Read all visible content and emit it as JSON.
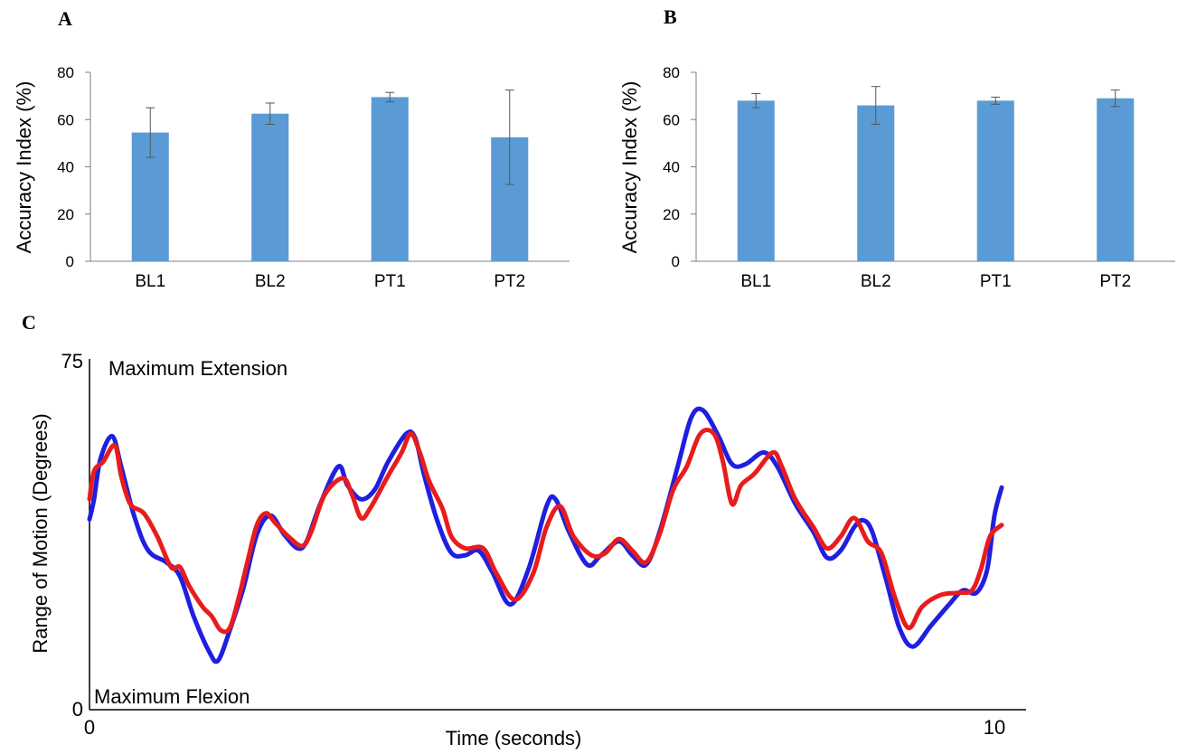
{
  "chart_data": [
    {
      "panel": "A",
      "type": "bar",
      "categories": [
        "BL1",
        "BL2",
        "PT1",
        "PT2"
      ],
      "values": [
        54.5,
        62.5,
        69.5,
        52.5
      ],
      "errors": [
        10.5,
        4.5,
        2.0,
        20.0
      ],
      "ylabel": "Accuracy Index (%)",
      "ylim": [
        0,
        80
      ],
      "yticks": [
        "0",
        "20",
        "40",
        "60",
        "80"
      ],
      "bar_color": "#5b9bd5",
      "grid": false
    },
    {
      "panel": "B",
      "type": "bar",
      "categories": [
        "BL1",
        "BL2",
        "PT1",
        "PT2"
      ],
      "values": [
        68,
        66,
        68,
        69
      ],
      "errors": [
        3.0,
        8.0,
        1.5,
        3.5
      ],
      "ylabel": "Accuracy Index (%)",
      "ylim": [
        0,
        80
      ],
      "yticks": [
        "0",
        "20",
        "40",
        "60",
        "80"
      ],
      "bar_color": "#5b9bd5",
      "grid": false
    },
    {
      "panel": "C",
      "type": "line",
      "xlabel": "Time (seconds)",
      "ylabel": "Range of Motion (Degrees)",
      "xlim": [
        0,
        10
      ],
      "ylim": [
        0,
        75
      ],
      "xticks": [
        "0",
        "10"
      ],
      "yticks": [
        "0",
        "75"
      ],
      "annotations": {
        "top": "Maximum Extension",
        "bottom": "Maximum Flexion"
      },
      "grid": false,
      "series": [
        {
          "color": "#1f1fdf",
          "points": [
            [
              0.0,
              40.7
            ],
            [
              0.05,
              45.0
            ],
            [
              0.12,
              53.5
            ],
            [
              0.25,
              58.5
            ],
            [
              0.35,
              52.0
            ],
            [
              0.5,
              41.0
            ],
            [
              0.65,
              34.0
            ],
            [
              0.85,
              31.5
            ],
            [
              1.0,
              28.5
            ],
            [
              1.15,
              20.0
            ],
            [
              1.32,
              12.5
            ],
            [
              1.42,
              10.5
            ],
            [
              1.55,
              17.0
            ],
            [
              1.7,
              26.0
            ],
            [
              1.85,
              37.5
            ],
            [
              2.0,
              41.5
            ],
            [
              2.15,
              37.5
            ],
            [
              2.3,
              34.5
            ],
            [
              2.4,
              36.0
            ],
            [
              2.55,
              44.0
            ],
            [
              2.75,
              52.0
            ],
            [
              2.85,
              48.0
            ],
            [
              3.0,
              45.0
            ],
            [
              3.15,
              47.0
            ],
            [
              3.3,
              53.0
            ],
            [
              3.5,
              59.0
            ],
            [
              3.6,
              58.0
            ],
            [
              3.7,
              50.0
            ],
            [
              3.85,
              40.0
            ],
            [
              4.0,
              33.5
            ],
            [
              4.15,
              33.0
            ],
            [
              4.3,
              34.0
            ],
            [
              4.45,
              29.5
            ],
            [
              4.65,
              22.5
            ],
            [
              4.85,
              30.0
            ],
            [
              5.05,
              43.5
            ],
            [
              5.15,
              45.0
            ],
            [
              5.3,
              38.0
            ],
            [
              5.5,
              31.0
            ],
            [
              5.65,
              33.0
            ],
            [
              5.85,
              36.0
            ],
            [
              6.0,
              33.0
            ],
            [
              6.15,
              31.0
            ],
            [
              6.3,
              38.0
            ],
            [
              6.5,
              52.0
            ],
            [
              6.65,
              62.5
            ],
            [
              6.78,
              64.0
            ],
            [
              6.95,
              58.5
            ],
            [
              7.1,
              52.5
            ],
            [
              7.25,
              52.5
            ],
            [
              7.45,
              55.0
            ],
            [
              7.6,
              52.0
            ],
            [
              7.8,
              44.0
            ],
            [
              8.0,
              38.0
            ],
            [
              8.15,
              32.5
            ],
            [
              8.3,
              34.0
            ],
            [
              8.45,
              39.0
            ],
            [
              8.55,
              40.5
            ],
            [
              8.65,
              38.0
            ],
            [
              8.8,
              28.0
            ],
            [
              8.95,
              17.5
            ],
            [
              9.1,
              13.5
            ],
            [
              9.3,
              18.0
            ],
            [
              9.5,
              22.5
            ],
            [
              9.65,
              25.5
            ],
            [
              9.8,
              25.0
            ],
            [
              9.92,
              30.0
            ],
            [
              10.0,
              41.5
            ],
            [
              10.08,
              47.5
            ]
          ]
        },
        {
          "color": "#e81c1c",
          "points": [
            [
              0.0,
              45.0
            ],
            [
              0.05,
              51.0
            ],
            [
              0.15,
              53.0
            ],
            [
              0.28,
              56.5
            ],
            [
              0.35,
              50.0
            ],
            [
              0.45,
              44.0
            ],
            [
              0.6,
              42.0
            ],
            [
              0.75,
              37.0
            ],
            [
              0.9,
              30.5
            ],
            [
              1.0,
              30.5
            ],
            [
              1.1,
              26.5
            ],
            [
              1.25,
              22.0
            ],
            [
              1.35,
              20.0
            ],
            [
              1.45,
              17.0
            ],
            [
              1.55,
              17.5
            ],
            [
              1.65,
              24.0
            ],
            [
              1.75,
              32.0
            ],
            [
              1.85,
              39.5
            ],
            [
              1.95,
              42.0
            ],
            [
              2.05,
              40.0
            ],
            [
              2.2,
              37.0
            ],
            [
              2.35,
              35.0
            ],
            [
              2.45,
              38.0
            ],
            [
              2.6,
              46.0
            ],
            [
              2.8,
              49.5
            ],
            [
              2.9,
              46.0
            ],
            [
              3.0,
              41.0
            ],
            [
              3.1,
              43.0
            ],
            [
              3.3,
              50.0
            ],
            [
              3.45,
              55.0
            ],
            [
              3.55,
              59.0
            ],
            [
              3.65,
              55.0
            ],
            [
              3.75,
              49.0
            ],
            [
              3.9,
              43.0
            ],
            [
              4.0,
              37.0
            ],
            [
              4.15,
              34.5
            ],
            [
              4.35,
              34.5
            ],
            [
              4.5,
              29.0
            ],
            [
              4.7,
              23.5
            ],
            [
              4.9,
              29.0
            ],
            [
              5.05,
              39.0
            ],
            [
              5.2,
              43.5
            ],
            [
              5.35,
              37.0
            ],
            [
              5.55,
              33.0
            ],
            [
              5.7,
              33.5
            ],
            [
              5.85,
              36.5
            ],
            [
              6.0,
              34.0
            ],
            [
              6.15,
              31.5
            ],
            [
              6.3,
              37.5
            ],
            [
              6.45,
              47.0
            ],
            [
              6.6,
              52.0
            ],
            [
              6.75,
              59.0
            ],
            [
              6.9,
              59.0
            ],
            [
              7.0,
              53.0
            ],
            [
              7.1,
              44.0
            ],
            [
              7.2,
              48.0
            ],
            [
              7.35,
              50.5
            ],
            [
              7.55,
              55.0
            ],
            [
              7.65,
              52.0
            ],
            [
              7.8,
              45.0
            ],
            [
              8.0,
              39.0
            ],
            [
              8.15,
              34.5
            ],
            [
              8.3,
              37.0
            ],
            [
              8.45,
              41.0
            ],
            [
              8.6,
              36.0
            ],
            [
              8.75,
              33.5
            ],
            [
              8.9,
              24.0
            ],
            [
              9.05,
              17.5
            ],
            [
              9.2,
              22.0
            ],
            [
              9.4,
              24.5
            ],
            [
              9.6,
              25.0
            ],
            [
              9.75,
              25.5
            ],
            [
              9.85,
              30.0
            ],
            [
              9.95,
              37.0
            ],
            [
              10.08,
              39.5
            ]
          ]
        }
      ]
    }
  ]
}
